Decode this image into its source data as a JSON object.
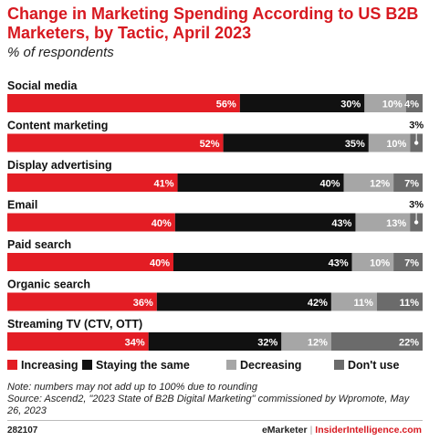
{
  "header": {
    "title": "Change in Marketing Spending According to US B2B Marketers, by Tactic, April 2023",
    "subtitle": "% of respondents"
  },
  "colors": {
    "Increasing": "#e31d24",
    "Staying the same": "#111111",
    "Decreasing": "#a6a6a6",
    "Don't use": "#6b6b6b",
    "row_background": "#e8e8e8",
    "title": "#d71920"
  },
  "chart_data": {
    "type": "bar",
    "orientation": "horizontal-stacked",
    "unit": "% of respondents",
    "categories": [
      "Social media",
      "Content marketing",
      "Display advertising",
      "Email",
      "Paid search",
      "Organic search",
      "Streaming TV (CTV, OTT)"
    ],
    "series": [
      {
        "name": "Increasing",
        "values": [
          56,
          52,
          41,
          40,
          40,
          36,
          34
        ]
      },
      {
        "name": "Staying the same",
        "values": [
          30,
          35,
          40,
          43,
          43,
          42,
          32
        ]
      },
      {
        "name": "Decreasing",
        "values": [
          10,
          10,
          12,
          13,
          10,
          11,
          12
        ]
      },
      {
        "name": "Don't use",
        "values": [
          4,
          3,
          7,
          3,
          7,
          11,
          22
        ]
      }
    ],
    "data_labels": [
      [
        "56%",
        "30%",
        "10%",
        "4%"
      ],
      [
        "52%",
        "35%",
        "10%",
        "3%"
      ],
      [
        "41%",
        "40%",
        "12%",
        "7%"
      ],
      [
        "40%",
        "43%",
        "13%",
        "3%"
      ],
      [
        "40%",
        "43%",
        "10%",
        "7%"
      ],
      [
        "36%",
        "42%",
        "11%",
        "11%"
      ],
      [
        "34%",
        "32%",
        "12%",
        "22%"
      ]
    ],
    "legend_position": "bottom",
    "grid": false
  },
  "notes": {
    "note": "Note: numbers may not add up to 100% due to rounding",
    "source": "Source: Ascend2, \"2023 State of B2B Digital Marketing\" commissioned by Wpromote, May 26, 2023"
  },
  "footer": {
    "chart_id": "282107",
    "brand": "eMarketer",
    "separator": "|",
    "site": "InsiderIntelligence.com"
  }
}
